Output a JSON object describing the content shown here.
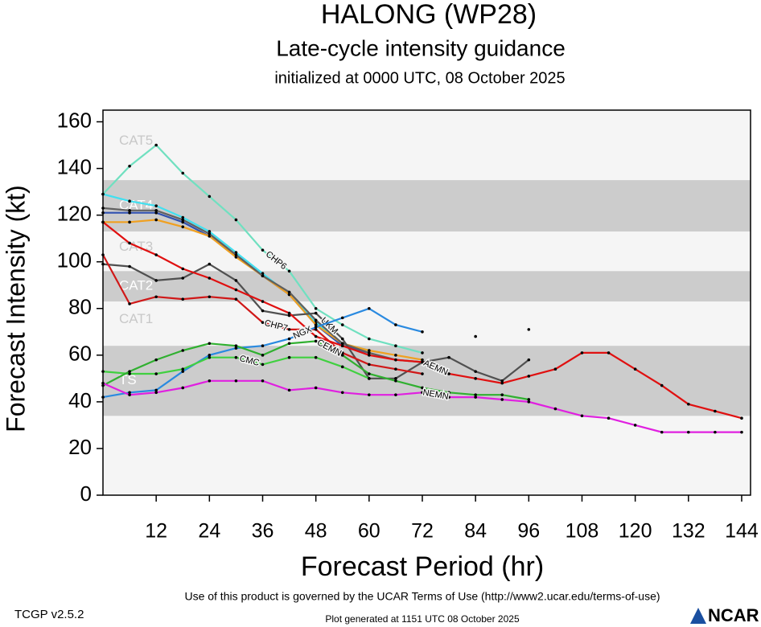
{
  "chart_data": {
    "type": "line",
    "title": "HALONG (WP28)",
    "subtitle": "Late-cycle intensity guidance",
    "initialized": "initialized at 0000 UTC, 08 October 2025",
    "x_label": "Forecast Period (hr)",
    "y_label": "Forecast Intensity (kt)",
    "xlim": [
      0,
      146
    ],
    "ylim": [
      0,
      165
    ],
    "xticks": [
      12,
      24,
      36,
      48,
      60,
      72,
      84,
      96,
      108,
      120,
      132,
      144
    ],
    "yticks": [
      0,
      20,
      40,
      60,
      80,
      100,
      120,
      140,
      160
    ],
    "intensity_bands": [
      {
        "label": "TS",
        "from": 34,
        "to": 64,
        "shaded": true
      },
      {
        "label": "CAT1",
        "from": 64,
        "to": 83,
        "shaded": false
      },
      {
        "label": "CAT2",
        "from": 83,
        "to": 96,
        "shaded": true
      },
      {
        "label": "CAT3",
        "from": 96,
        "to": 113,
        "shaded": false
      },
      {
        "label": "CAT4",
        "from": 113,
        "to": 135,
        "shaded": true
      },
      {
        "label": "CAT5",
        "from": 135,
        "to": 165,
        "shaded": false
      }
    ],
    "x": [
      0,
      6,
      12,
      18,
      24,
      30,
      36,
      42,
      48,
      54,
      60,
      66,
      72,
      78,
      84,
      90,
      96,
      102,
      108,
      114,
      120,
      126,
      132,
      138,
      144
    ],
    "series": [
      {
        "name": "CHP6",
        "color": "#70e0c0",
        "values": [
          129,
          141,
          150,
          138,
          128,
          118,
          105,
          96,
          80,
          73,
          67,
          64,
          61,
          null,
          null,
          null,
          null,
          null,
          null,
          null,
          null,
          null,
          null,
          null,
          null
        ]
      },
      {
        "color": "#40e0f0",
        "values": [
          129,
          126,
          124,
          119,
          113,
          104,
          95,
          86,
          74,
          65,
          62,
          null,
          null,
          null,
          null,
          null,
          null,
          null,
          null,
          null,
          null,
          null,
          null,
          null,
          null
        ]
      },
      {
        "color": "#3050b0",
        "values": [
          121,
          121,
          121,
          117,
          111,
          103,
          94,
          86,
          73,
          64,
          61,
          null,
          null,
          null,
          null,
          null,
          null,
          null,
          null,
          null,
          null,
          null,
          null,
          null,
          null
        ]
      },
      {
        "color": "#f0a020",
        "values": [
          117,
          117,
          118,
          115,
          111,
          102,
          94,
          86,
          73,
          65,
          62,
          60,
          58,
          null,
          null,
          null,
          null,
          null,
          null,
          null,
          null,
          null,
          null,
          null,
          null
        ]
      },
      {
        "color": "#606060",
        "values": [
          123,
          122,
          122,
          118,
          112,
          103,
          94,
          87,
          75,
          65,
          61,
          58,
          57,
          null,
          null,
          null,
          null,
          null,
          null,
          null,
          null,
          null,
          null,
          null,
          null
        ]
      },
      {
        "name": "UKM",
        "color": "#505050",
        "values": [
          99,
          98,
          92,
          93,
          99,
          92,
          79,
          77,
          78,
          67,
          50,
          50,
          57,
          59,
          53,
          49,
          58,
          null,
          null,
          null,
          null,
          null,
          null,
          null,
          null
        ]
      },
      {
        "name": "CHP7",
        "color": "#d01818",
        "values": [
          103,
          82,
          85,
          84,
          85,
          84,
          74,
          71,
          71,
          61,
          56,
          54,
          52,
          null,
          null,
          null,
          null,
          null,
          null,
          null,
          null,
          null,
          null,
          null,
          null
        ]
      },
      {
        "name": "AEMN",
        "color": "#e01010",
        "values": [
          117,
          108,
          103,
          97,
          93,
          88,
          83,
          78,
          68,
          64,
          60,
          58,
          57,
          52,
          50,
          48,
          51,
          54,
          61,
          61,
          54,
          47,
          39,
          36,
          33
        ]
      },
      {
        "name": "NGX",
        "color": "#2a8ae0",
        "values": [
          42,
          44,
          45,
          53,
          60,
          63,
          64,
          67,
          72,
          76,
          80,
          73,
          70,
          null,
          68,
          null,
          71,
          null,
          null,
          null,
          null,
          null,
          null,
          null,
          null
        ]
      },
      {
        "name": "CMC",
        "color": "#40d040",
        "values": [
          53,
          52,
          52,
          54,
          59,
          59,
          56,
          59,
          59,
          55,
          50,
          null,
          null,
          null,
          null,
          null,
          null,
          null,
          null,
          null,
          null,
          null,
          null,
          null,
          null
        ]
      },
      {
        "name": "CEMN",
        "color": "#30b030",
        "values": [
          47,
          53,
          58,
          62,
          65,
          64,
          60,
          65,
          66,
          60,
          52,
          49,
          46,
          44,
          43,
          43,
          41,
          null,
          null,
          null,
          null,
          null,
          null,
          null,
          null
        ]
      },
      {
        "name": "NEMN",
        "color": "#e020e0",
        "values": [
          48,
          43,
          44,
          46,
          49,
          49,
          49,
          45,
          46,
          44,
          43,
          43,
          44,
          42,
          42,
          41,
          40,
          37,
          34,
          33,
          30,
          27,
          27,
          27,
          27
        ]
      }
    ],
    "footer_terms": "Use of this product is governed by the UCAR Terms of Use (http://www2.ucar.edu/terms-of-use)",
    "version": "TCGP v2.5.2",
    "generated": "Plot generated at 1151 UTC   08 October 2025",
    "logo": "NCAR"
  }
}
